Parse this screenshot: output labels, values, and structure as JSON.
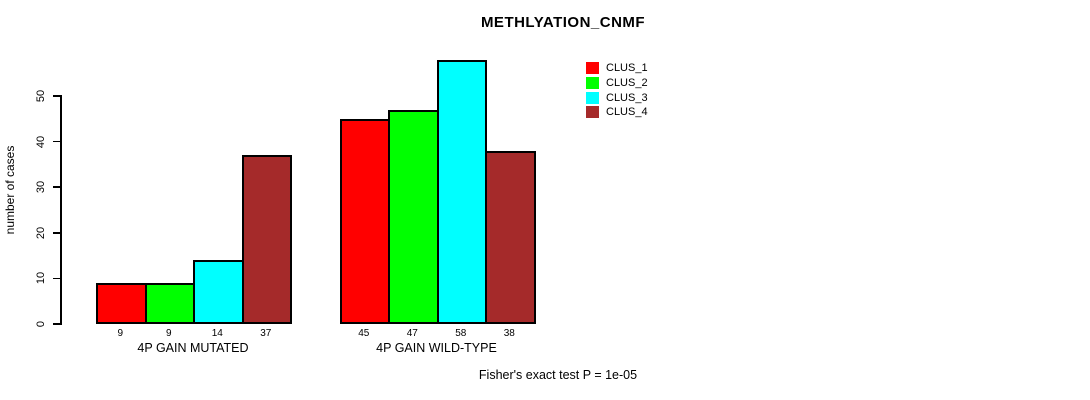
{
  "chart_data": {
    "type": "bar",
    "title": "METHLYATION_CNMF",
    "xlabel": "",
    "ylabel": "number of cases",
    "categories": [
      "4P GAIN MUTATED",
      "4P GAIN WILD-TYPE"
    ],
    "series": [
      {
        "name": "CLUS_1",
        "color": "#FF0000",
        "values": [
          9,
          45
        ]
      },
      {
        "name": "CLUS_2",
        "color": "#00FF00",
        "values": [
          9,
          47
        ]
      },
      {
        "name": "CLUS_3",
        "color": "#00FFFF",
        "values": [
          14,
          58
        ]
      },
      {
        "name": "CLUS_4",
        "color": "#A52A2A",
        "values": [
          37,
          38
        ]
      }
    ],
    "bar_value_labels": [
      [
        9,
        9,
        14,
        37
      ],
      [
        45,
        47,
        58,
        38
      ]
    ],
    "yticks": [
      0,
      10,
      20,
      30,
      40,
      50
    ],
    "ylim": [
      0,
      58
    ],
    "grid": false,
    "legend_position": "top-right",
    "legend": [
      {
        "label": "CLUS_1",
        "color": "#FF0000"
      },
      {
        "label": "CLUS_2",
        "color": "#00FF00"
      },
      {
        "label": "CLUS_3",
        "color": "#00FFFF"
      },
      {
        "label": "CLUS_4",
        "color": "#A52A2A"
      }
    ],
    "annotation": "Fisher's exact test P = 1e-05"
  }
}
